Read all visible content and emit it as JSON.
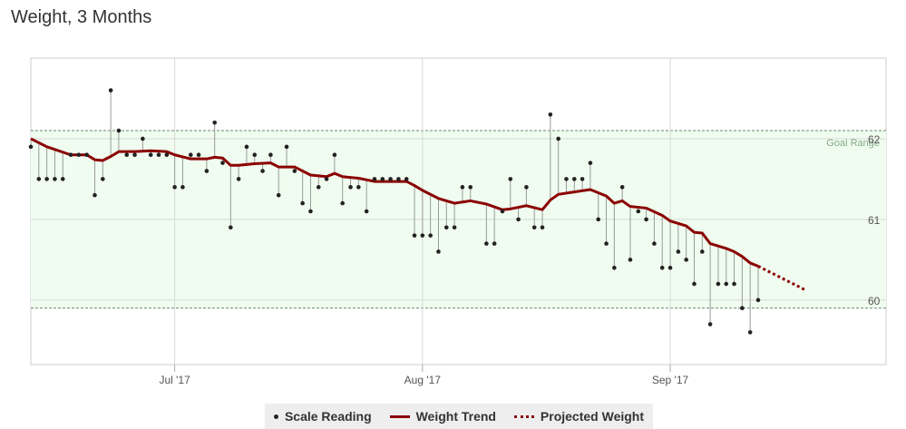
{
  "title": "Weight, 3 Months",
  "legend": {
    "scale_reading": "Scale Reading",
    "weight_trend": "Weight Trend",
    "projected_weight": "Projected Weight"
  },
  "colors": {
    "plot_bg": "#ffffff",
    "goal_fill": "#effcef",
    "goal_line": "#6a8a6a",
    "trend": "#8b0000",
    "point": "#222222",
    "stem": "#9a9a9a",
    "grid": "#d8d8d8"
  },
  "chart_data": {
    "type": "line",
    "title": "Weight, 3 Months",
    "x_start": "2017-06-13",
    "x_end": "2017-09-28",
    "xticks": [
      {
        "date": "2017-07-01",
        "label": "Jul '17"
      },
      {
        "date": "2017-08-01",
        "label": "Aug '17"
      },
      {
        "date": "2017-09-01",
        "label": "Sep '17"
      }
    ],
    "ylim": [
      59.2,
      63.0
    ],
    "yticks": [
      60,
      61,
      62
    ],
    "grid": true,
    "legend_position": "bottom",
    "goal_range": {
      "label": "Goal Range",
      "min": 59.9,
      "max": 62.1
    },
    "series": [
      {
        "name": "Scale Reading",
        "type": "scatter",
        "points": [
          [
            "2017-06-13",
            61.9
          ],
          [
            "2017-06-14",
            61.5
          ],
          [
            "2017-06-15",
            61.5
          ],
          [
            "2017-06-16",
            61.5
          ],
          [
            "2017-06-17",
            61.5
          ],
          [
            "2017-06-18",
            61.8
          ],
          [
            "2017-06-19",
            61.8
          ],
          [
            "2017-06-20",
            61.8
          ],
          [
            "2017-06-21",
            61.3
          ],
          [
            "2017-06-22",
            61.5
          ],
          [
            "2017-06-23",
            62.6
          ],
          [
            "2017-06-24",
            62.1
          ],
          [
            "2017-06-25",
            61.8
          ],
          [
            "2017-06-26",
            61.8
          ],
          [
            "2017-06-27",
            62.0
          ],
          [
            "2017-06-28",
            61.8
          ],
          [
            "2017-06-29",
            61.8
          ],
          [
            "2017-06-30",
            61.8
          ],
          [
            "2017-07-01",
            61.4
          ],
          [
            "2017-07-02",
            61.4
          ],
          [
            "2017-07-03",
            61.8
          ],
          [
            "2017-07-04",
            61.8
          ],
          [
            "2017-07-05",
            61.6
          ],
          [
            "2017-07-06",
            62.2
          ],
          [
            "2017-07-07",
            61.7
          ],
          [
            "2017-07-08",
            60.9
          ],
          [
            "2017-07-09",
            61.5
          ],
          [
            "2017-07-10",
            61.9
          ],
          [
            "2017-07-11",
            61.8
          ],
          [
            "2017-07-12",
            61.6
          ],
          [
            "2017-07-13",
            61.8
          ],
          [
            "2017-07-14",
            61.3
          ],
          [
            "2017-07-15",
            61.9
          ],
          [
            "2017-07-16",
            61.6
          ],
          [
            "2017-07-17",
            61.2
          ],
          [
            "2017-07-18",
            61.1
          ],
          [
            "2017-07-19",
            61.4
          ],
          [
            "2017-07-20",
            61.5
          ],
          [
            "2017-07-21",
            61.8
          ],
          [
            "2017-07-22",
            61.2
          ],
          [
            "2017-07-23",
            61.4
          ],
          [
            "2017-07-24",
            61.4
          ],
          [
            "2017-07-25",
            61.1
          ],
          [
            "2017-07-26",
            61.5
          ],
          [
            "2017-07-27",
            61.5
          ],
          [
            "2017-07-28",
            61.5
          ],
          [
            "2017-07-29",
            61.5
          ],
          [
            "2017-07-30",
            61.5
          ],
          [
            "2017-07-31",
            60.8
          ],
          [
            "2017-08-01",
            60.8
          ],
          [
            "2017-08-02",
            60.8
          ],
          [
            "2017-08-03",
            60.6
          ],
          [
            "2017-08-04",
            60.9
          ],
          [
            "2017-08-05",
            60.9
          ],
          [
            "2017-08-06",
            61.4
          ],
          [
            "2017-08-07",
            61.4
          ],
          [
            "2017-08-09",
            60.7
          ],
          [
            "2017-08-10",
            60.7
          ],
          [
            "2017-08-11",
            61.1
          ],
          [
            "2017-08-12",
            61.5
          ],
          [
            "2017-08-13",
            61.0
          ],
          [
            "2017-08-14",
            61.4
          ],
          [
            "2017-08-15",
            60.9
          ],
          [
            "2017-08-16",
            60.9
          ],
          [
            "2017-08-17",
            62.3
          ],
          [
            "2017-08-18",
            62.0
          ],
          [
            "2017-08-19",
            61.5
          ],
          [
            "2017-08-20",
            61.5
          ],
          [
            "2017-08-21",
            61.5
          ],
          [
            "2017-08-22",
            61.7
          ],
          [
            "2017-08-23",
            61.0
          ],
          [
            "2017-08-24",
            60.7
          ],
          [
            "2017-08-25",
            60.4
          ],
          [
            "2017-08-26",
            61.4
          ],
          [
            "2017-08-27",
            60.5
          ],
          [
            "2017-08-28",
            61.1
          ],
          [
            "2017-08-29",
            61.0
          ],
          [
            "2017-08-30",
            60.7
          ],
          [
            "2017-08-31",
            60.4
          ],
          [
            "2017-09-01",
            60.4
          ],
          [
            "2017-09-02",
            60.6
          ],
          [
            "2017-09-03",
            60.5
          ],
          [
            "2017-09-04",
            60.2
          ],
          [
            "2017-09-05",
            60.6
          ],
          [
            "2017-09-06",
            59.7
          ],
          [
            "2017-09-07",
            60.2
          ],
          [
            "2017-09-08",
            60.2
          ],
          [
            "2017-09-09",
            60.2
          ],
          [
            "2017-09-10",
            59.9
          ],
          [
            "2017-09-11",
            59.6
          ],
          [
            "2017-09-12",
            60.0
          ]
        ]
      },
      {
        "name": "Weight Trend",
        "type": "line",
        "points": [
          [
            "2017-06-13",
            62.0
          ],
          [
            "2017-06-15",
            61.9
          ],
          [
            "2017-06-18",
            61.8
          ],
          [
            "2017-06-20",
            61.8
          ],
          [
            "2017-06-21",
            61.74
          ],
          [
            "2017-06-22",
            61.73
          ],
          [
            "2017-06-23",
            61.78
          ],
          [
            "2017-06-24",
            61.84
          ],
          [
            "2017-06-26",
            61.84
          ],
          [
            "2017-06-28",
            61.85
          ],
          [
            "2017-06-30",
            61.84
          ],
          [
            "2017-07-01",
            61.8
          ],
          [
            "2017-07-03",
            61.75
          ],
          [
            "2017-07-05",
            61.75
          ],
          [
            "2017-07-06",
            61.77
          ],
          [
            "2017-07-07",
            61.76
          ],
          [
            "2017-07-08",
            61.67
          ],
          [
            "2017-07-09",
            61.67
          ],
          [
            "2017-07-11",
            61.69
          ],
          [
            "2017-07-13",
            61.7
          ],
          [
            "2017-07-14",
            61.65
          ],
          [
            "2017-07-16",
            61.65
          ],
          [
            "2017-07-18",
            61.55
          ],
          [
            "2017-07-20",
            61.53
          ],
          [
            "2017-07-21",
            61.57
          ],
          [
            "2017-07-22",
            61.53
          ],
          [
            "2017-07-24",
            61.51
          ],
          [
            "2017-07-26",
            61.47
          ],
          [
            "2017-07-28",
            61.47
          ],
          [
            "2017-07-30",
            61.47
          ],
          [
            "2017-07-31",
            61.42
          ],
          [
            "2017-08-01",
            61.36
          ],
          [
            "2017-08-03",
            61.26
          ],
          [
            "2017-08-05",
            61.2
          ],
          [
            "2017-08-07",
            61.23
          ],
          [
            "2017-08-09",
            61.19
          ],
          [
            "2017-08-11",
            61.12
          ],
          [
            "2017-08-12",
            61.13
          ],
          [
            "2017-08-13",
            61.15
          ],
          [
            "2017-08-14",
            61.17
          ],
          [
            "2017-08-16",
            61.12
          ],
          [
            "2017-08-17",
            61.24
          ],
          [
            "2017-08-18",
            61.31
          ],
          [
            "2017-08-20",
            61.34
          ],
          [
            "2017-08-22",
            61.37
          ],
          [
            "2017-08-24",
            61.29
          ],
          [
            "2017-08-25",
            61.2
          ],
          [
            "2017-08-26",
            61.23
          ],
          [
            "2017-08-27",
            61.16
          ],
          [
            "2017-08-29",
            61.14
          ],
          [
            "2017-08-31",
            61.05
          ],
          [
            "2017-09-01",
            60.98
          ],
          [
            "2017-09-03",
            60.92
          ],
          [
            "2017-09-04",
            60.84
          ],
          [
            "2017-09-05",
            60.83
          ],
          [
            "2017-09-06",
            60.7
          ],
          [
            "2017-09-08",
            60.64
          ],
          [
            "2017-09-09",
            60.6
          ],
          [
            "2017-09-10",
            60.54
          ],
          [
            "2017-09-11",
            60.46
          ],
          [
            "2017-09-12",
            60.42
          ]
        ]
      },
      {
        "name": "Projected Weight",
        "type": "line",
        "style": "dotted",
        "points": [
          [
            "2017-09-12",
            60.42
          ],
          [
            "2017-09-17",
            60.17
          ],
          [
            "2017-09-18",
            60.12
          ]
        ]
      }
    ]
  }
}
